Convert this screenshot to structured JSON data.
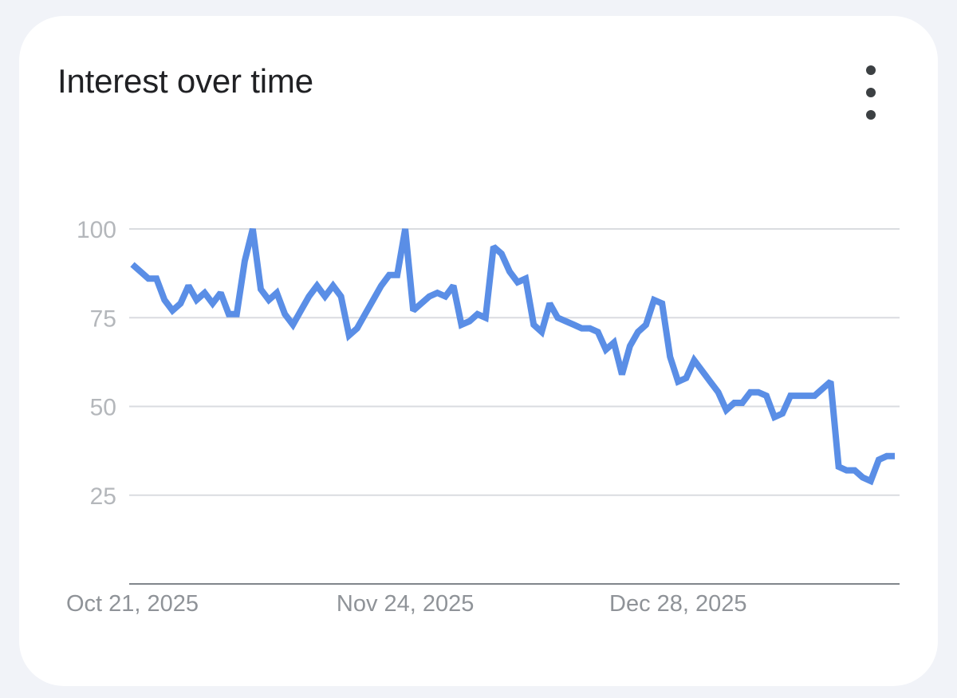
{
  "card": {
    "title": "Interest over time",
    "menu_icon": "more-vert-icon"
  },
  "colors": {
    "line": "#5a8ee6",
    "grid": "#dadce0",
    "axis": "#80868b",
    "background": "#f1f3f8",
    "card": "#ffffff"
  },
  "chart_data": {
    "type": "line",
    "title": "Interest over time",
    "xlabel": "",
    "ylabel": "",
    "ylim": [
      0,
      100
    ],
    "yticks": [
      25,
      50,
      75,
      100
    ],
    "ytick_labels": [
      "25",
      "50",
      "75",
      "100"
    ],
    "xlim": [
      "2025-10-21",
      "2026-01-24"
    ],
    "xticks": [
      "2025-10-21",
      "2025-11-24",
      "2025-12-28"
    ],
    "xtick_labels": [
      "Oct 21, 2025",
      "Nov 24, 2025",
      "Dec 28, 2025"
    ],
    "grid": true,
    "legend": "none",
    "x": [
      "2025-10-21",
      "2025-10-22",
      "2025-10-23",
      "2025-10-24",
      "2025-10-25",
      "2025-10-26",
      "2025-10-27",
      "2025-10-28",
      "2025-10-29",
      "2025-10-30",
      "2025-10-31",
      "2025-11-01",
      "2025-11-02",
      "2025-11-03",
      "2025-11-04",
      "2025-11-05",
      "2025-11-06",
      "2025-11-07",
      "2025-11-08",
      "2025-11-09",
      "2025-11-10",
      "2025-11-11",
      "2025-11-12",
      "2025-11-13",
      "2025-11-14",
      "2025-11-15",
      "2025-11-16",
      "2025-11-17",
      "2025-11-18",
      "2025-11-19",
      "2025-11-20",
      "2025-11-21",
      "2025-11-22",
      "2025-11-23",
      "2025-11-24",
      "2025-11-25",
      "2025-11-26",
      "2025-11-27",
      "2025-11-28",
      "2025-11-29",
      "2025-11-30",
      "2025-12-01",
      "2025-12-02",
      "2025-12-03",
      "2025-12-04",
      "2025-12-05",
      "2025-12-06",
      "2025-12-07",
      "2025-12-08",
      "2025-12-09",
      "2025-12-10",
      "2025-12-11",
      "2025-12-12",
      "2025-12-13",
      "2025-12-14",
      "2025-12-15",
      "2025-12-16",
      "2025-12-17",
      "2025-12-18",
      "2025-12-19",
      "2025-12-20",
      "2025-12-21",
      "2025-12-22",
      "2025-12-23",
      "2025-12-24",
      "2025-12-25",
      "2025-12-26",
      "2025-12-27",
      "2025-12-28",
      "2025-12-29",
      "2025-12-30",
      "2025-12-31",
      "2026-01-01",
      "2026-01-02",
      "2026-01-03",
      "2026-01-04",
      "2026-01-05",
      "2026-01-06",
      "2026-01-07",
      "2026-01-08",
      "2026-01-09",
      "2026-01-10",
      "2026-01-11",
      "2026-01-12",
      "2026-01-13",
      "2026-01-14",
      "2026-01-15",
      "2026-01-16",
      "2026-01-17",
      "2026-01-18",
      "2026-01-19",
      "2026-01-20",
      "2026-01-21",
      "2026-01-22",
      "2026-01-23",
      "2026-01-24"
    ],
    "series": [
      {
        "values": [
          90,
          88,
          86,
          86,
          80,
          77,
          79,
          84,
          80,
          82,
          79,
          82,
          76,
          76,
          91,
          100,
          83,
          80,
          82,
          76,
          73,
          77,
          81,
          84,
          81,
          84,
          81,
          70,
          72,
          76,
          80,
          84,
          87,
          87,
          100,
          77,
          79,
          81,
          82,
          81,
          84,
          73,
          74,
          76,
          75,
          95,
          93,
          88,
          85,
          86,
          73,
          71,
          79,
          75,
          74,
          73,
          72,
          72,
          71,
          66,
          68,
          59,
          67,
          71,
          73,
          80,
          79,
          64,
          57,
          58,
          63,
          60,
          57,
          54,
          49,
          51,
          51,
          54,
          54,
          53,
          47,
          48,
          53,
          53,
          53,
          53,
          55,
          57,
          33,
          32,
          32,
          30,
          29,
          35,
          36,
          36
        ]
      }
    ]
  }
}
